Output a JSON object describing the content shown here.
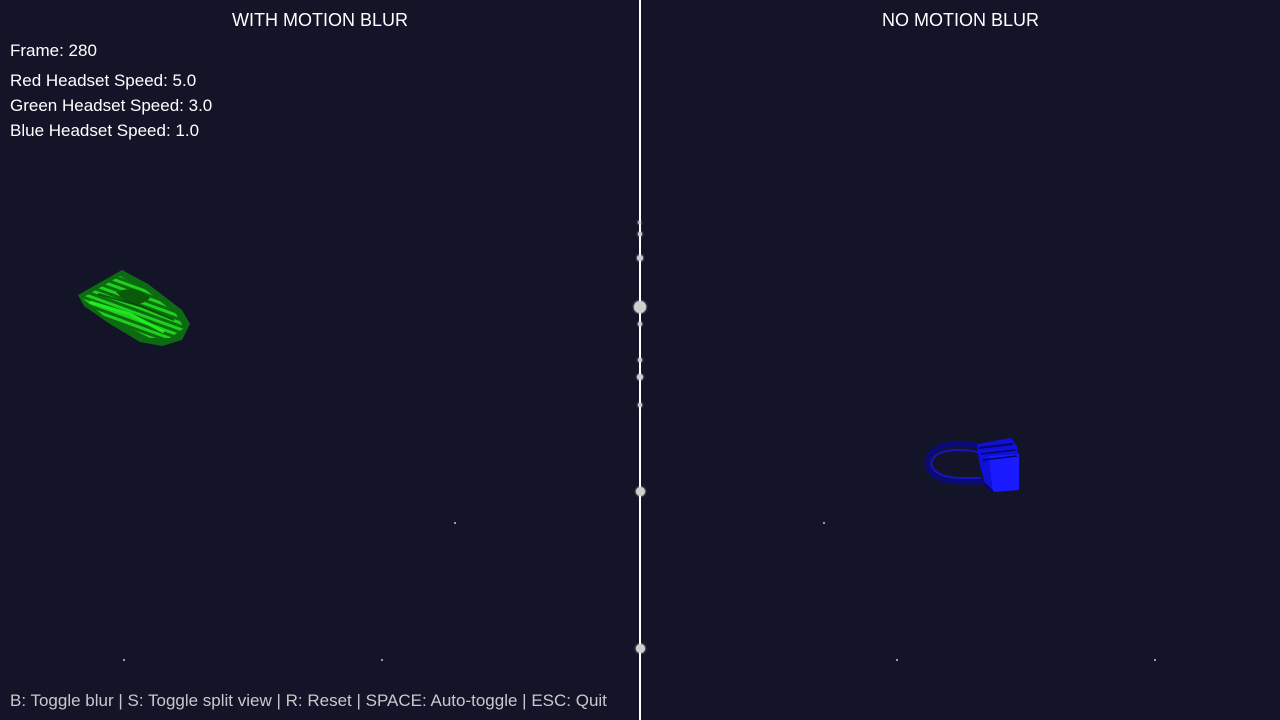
{
  "left_pane": {
    "title": "WITH MOTION BLUR"
  },
  "right_pane": {
    "title": "NO MOTION BLUR"
  },
  "hud": {
    "frame": "Frame: 280",
    "red_speed": "Red Headset Speed: 5.0",
    "green_speed": "Green Headset Speed: 3.0",
    "blue_speed": "Blue Headset Speed: 1.0"
  },
  "footer": {
    "controls": "B: Toggle blur | S: Toggle split view | R: Reset | SPACE: Auto-toggle | ESC: Quit"
  },
  "colors": {
    "background": "#131428",
    "divider": "#ffffff",
    "green_headset": "#1ec81e",
    "blue_headset": "#1414ff"
  }
}
